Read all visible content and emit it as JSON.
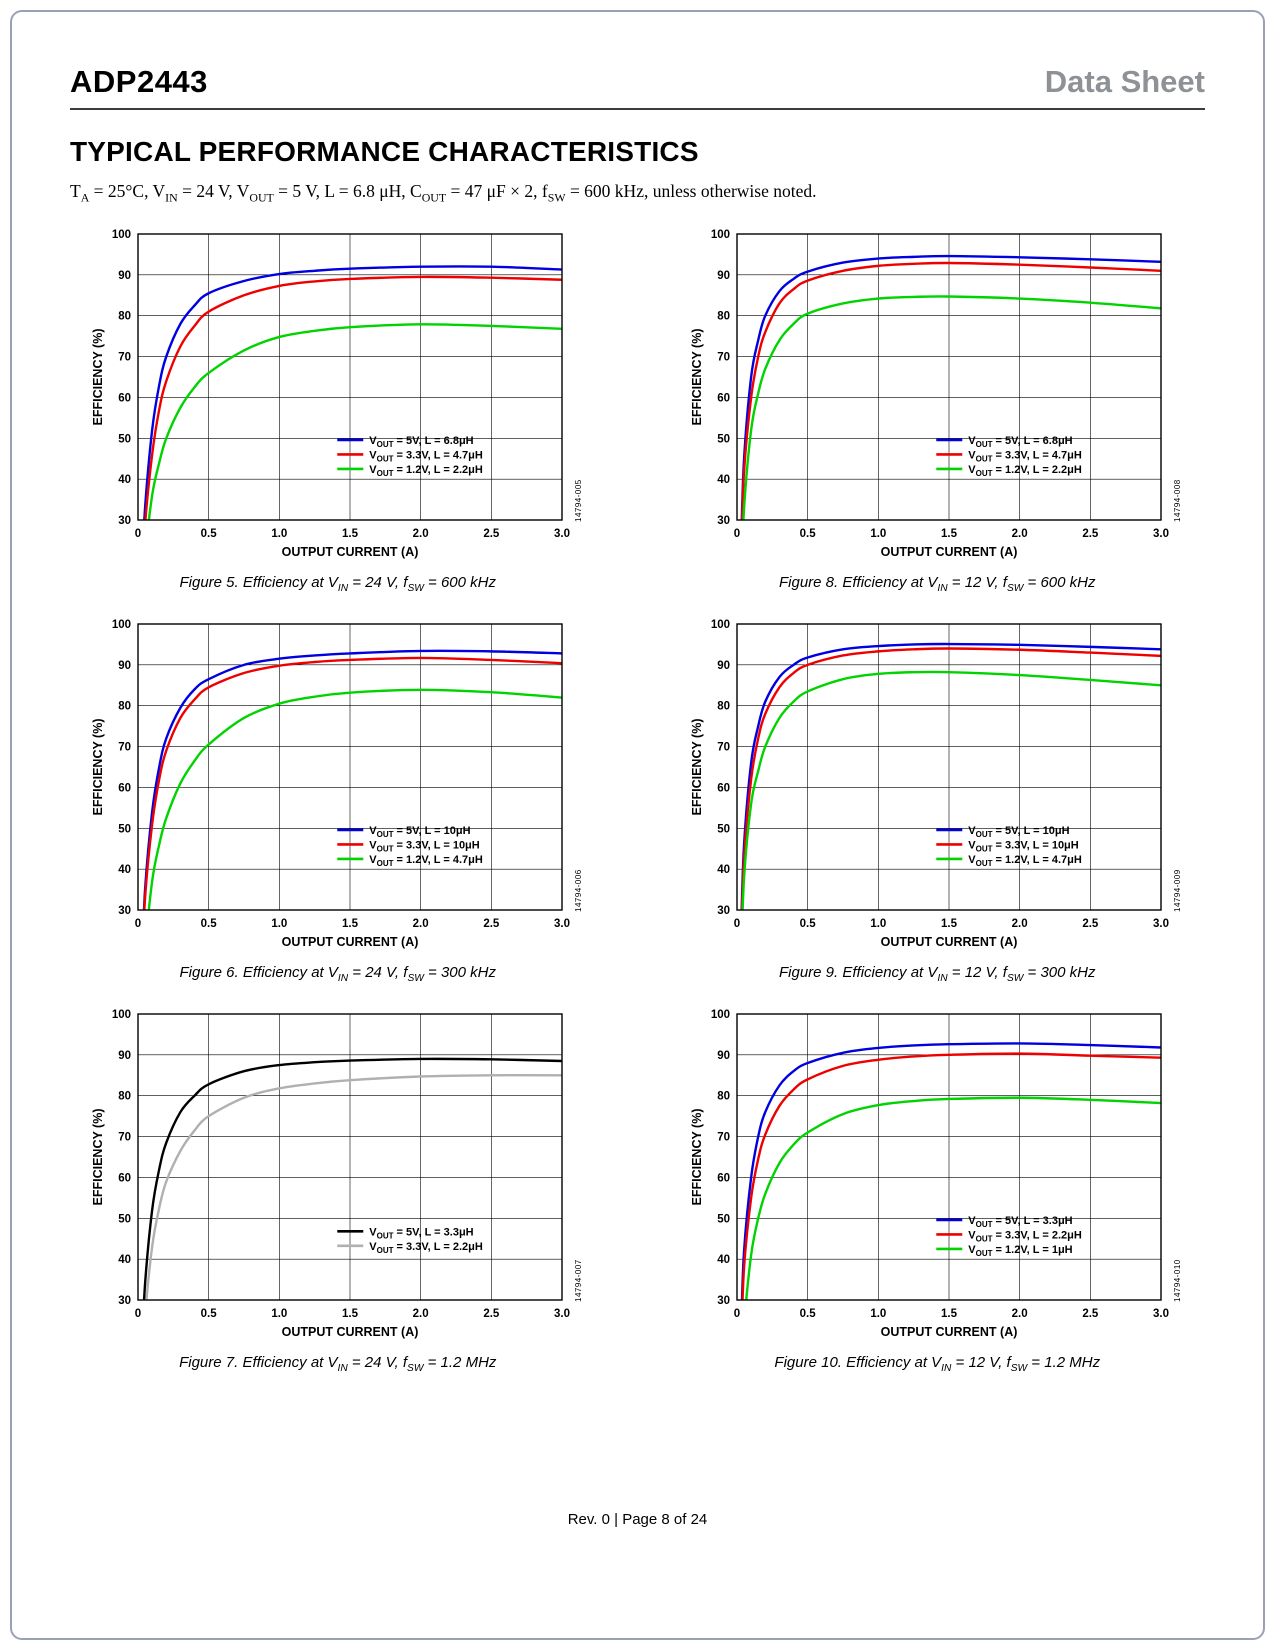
{
  "page": {
    "header": {
      "part_number": "ADP2443",
      "doc_type": "Data Sheet"
    },
    "section_title": "TYPICAL PERFORMANCE CHARACTERISTICS",
    "conditions": "T_{A} = 25°C, V_{IN} = 24 V, V_{OUT} = 5 V, L = 6.8 μH, C_{OUT} = 47 μF × 2, f_{SW} = 600 kHz, unless otherwise noted.",
    "footer": "Rev. 0 | Page 8 of 24"
  },
  "colors": {
    "accent_blue": "#0000e0",
    "accent_red": "#ee0000",
    "accent_green": "#00d300",
    "curve_black": "#000000",
    "curve_gray": "#b0b0b0",
    "doc_type_gray": "#8e9296"
  },
  "chart_data": [
    {
      "type": "line",
      "figure_code": "14794-005",
      "caption": "Figure 5. Efficiency at V_{IN} = 24 V, f_{SW} = 600 kHz",
      "xlabel": "OUTPUT CURRENT (A)",
      "ylabel": "EFFICIENCY (%)",
      "xlim": [
        0,
        3.0
      ],
      "ylim": [
        30,
        100
      ],
      "xticks": [
        "0",
        "0.5",
        "1.0",
        "1.5",
        "2.0",
        "2.5",
        "3.0"
      ],
      "yticks": [
        30,
        40,
        50,
        60,
        70,
        80,
        90,
        100
      ],
      "legend_y": 0.72,
      "x": [
        0.03,
        0.05,
        0.1,
        0.15,
        0.2,
        0.3,
        0.4,
        0.5,
        0.75,
        1.0,
        1.25,
        1.5,
        2.0,
        2.5,
        3.0
      ],
      "series": [
        {
          "name": "V_{OUT} = 5V, L = 6.8μH",
          "color": "#0000e0",
          "values": [
            18,
            33,
            52,
            63,
            70,
            78,
            82.5,
            85.5,
            88.5,
            90.2,
            91,
            91.5,
            92,
            92,
            91.3
          ]
        },
        {
          "name": "V_{OUT} = 3.3V, L = 4.7μH",
          "color": "#ee0000",
          "values": [
            15,
            29,
            46,
            57,
            64,
            72.5,
            77.5,
            81,
            85,
            87.3,
            88.4,
            89,
            89.5,
            89.3,
            88.8
          ]
        },
        {
          "name": "V_{OUT} = 1.2V, L = 2.2μH",
          "color": "#00d300",
          "values": [
            10,
            21,
            36,
            44,
            50,
            57.5,
            62.5,
            66,
            71.5,
            74.8,
            76.3,
            77.2,
            77.9,
            77.5,
            76.8
          ]
        }
      ]
    },
    {
      "type": "line",
      "figure_code": "14794-008",
      "caption": "Figure 8. Efficiency at V_{IN} = 12 V, f_{SW} = 600 kHz",
      "xlabel": "OUTPUT CURRENT (A)",
      "ylabel": "EFFICIENCY (%)",
      "xlim": [
        0,
        3.0
      ],
      "ylim": [
        30,
        100
      ],
      "xticks": [
        "0",
        "0.5",
        "1.0",
        "1.5",
        "2.0",
        "2.5",
        "3.0"
      ],
      "yticks": [
        30,
        40,
        50,
        60,
        70,
        80,
        90,
        100
      ],
      "legend_y": 0.72,
      "x": [
        0.03,
        0.05,
        0.1,
        0.15,
        0.2,
        0.3,
        0.4,
        0.5,
        0.75,
        1.0,
        1.25,
        1.5,
        2.0,
        2.5,
        3.0
      ],
      "series": [
        {
          "name": "V_{OUT} = 5V, L = 6.8μH",
          "color": "#0000e0",
          "values": [
            25,
            45,
            65,
            74,
            80,
            86,
            89,
            90.8,
            93,
            94,
            94.4,
            94.6,
            94.3,
            93.8,
            93.2
          ]
        },
        {
          "name": "V_{OUT} = 3.3V, L = 4.7μH",
          "color": "#ee0000",
          "values": [
            22,
            42,
            60,
            70,
            76,
            83,
            86.5,
            88.6,
            91,
            92.2,
            92.7,
            92.9,
            92.5,
            91.8,
            91
          ]
        },
        {
          "name": "V_{OUT} = 1.2V, L = 2.2μH",
          "color": "#00d300",
          "values": [
            15,
            33,
            52,
            61,
            67,
            74,
            78,
            80.5,
            83,
            84.2,
            84.6,
            84.7,
            84.2,
            83.2,
            81.8
          ]
        }
      ]
    },
    {
      "type": "line",
      "figure_code": "14794-006",
      "caption": "Figure 6. Efficiency at V_{IN} = 24 V, f_{SW} = 300 kHz",
      "xlabel": "OUTPUT CURRENT (A)",
      "ylabel": "EFFICIENCY (%)",
      "xlim": [
        0,
        3.0
      ],
      "ylim": [
        30,
        100
      ],
      "xticks": [
        "0",
        "0.5",
        "1.0",
        "1.5",
        "2.0",
        "2.5",
        "3.0"
      ],
      "yticks": [
        30,
        40,
        50,
        60,
        70,
        80,
        90,
        100
      ],
      "legend_y": 0.72,
      "x": [
        0.03,
        0.05,
        0.1,
        0.15,
        0.2,
        0.3,
        0.4,
        0.5,
        0.75,
        1.0,
        1.25,
        1.5,
        2.0,
        2.5,
        3.0
      ],
      "series": [
        {
          "name": "V_{OUT} = 5V, L = 10μH",
          "color": "#0000e0",
          "values": [
            18,
            35,
            54,
            65,
            72,
            79.5,
            84,
            86.5,
            90,
            91.5,
            92.3,
            92.8,
            93.4,
            93.3,
            92.8
          ]
        },
        {
          "name": "V_{OUT} = 3.3V, L = 10μH",
          "color": "#ee0000",
          "values": [
            16,
            33,
            51,
            62,
            69,
            77,
            81.5,
            84.5,
            88,
            89.8,
            90.7,
            91.2,
            91.7,
            91.2,
            90.4
          ]
        },
        {
          "name": "V_{OUT} = 1.2V, L = 4.7μH",
          "color": "#00d300",
          "values": [
            8,
            20,
            37,
            46,
            52.5,
            61,
            66.5,
            70.5,
            77,
            80.5,
            82.2,
            83.2,
            83.9,
            83.3,
            82
          ]
        }
      ]
    },
    {
      "type": "line",
      "figure_code": "14794-009",
      "caption": "Figure 9. Efficiency at V_{IN} = 12 V, f_{SW} = 300 kHz",
      "xlabel": "OUTPUT CURRENT (A)",
      "ylabel": "EFFICIENCY (%)",
      "xlim": [
        0,
        3.0
      ],
      "ylim": [
        30,
        100
      ],
      "xticks": [
        "0",
        "0.5",
        "1.0",
        "1.5",
        "2.0",
        "2.5",
        "3.0"
      ],
      "yticks": [
        30,
        40,
        50,
        60,
        70,
        80,
        90,
        100
      ],
      "legend_y": 0.72,
      "x": [
        0.03,
        0.05,
        0.1,
        0.15,
        0.2,
        0.3,
        0.4,
        0.5,
        0.75,
        1.0,
        1.25,
        1.5,
        2.0,
        2.5,
        3.0
      ],
      "series": [
        {
          "name": "V_{OUT} = 5V, L = 10μH",
          "color": "#0000e0",
          "values": [
            26,
            46,
            66,
            75,
            81,
            87,
            90,
            91.8,
            93.8,
            94.6,
            95,
            95.1,
            94.9,
            94.4,
            93.8
          ]
        },
        {
          "name": "V_{OUT} = 3.3V, L = 10μH",
          "color": "#ee0000",
          "values": [
            23,
            43,
            62,
            72,
            78,
            84.5,
            88,
            90,
            92.3,
            93.3,
            93.8,
            94,
            93.7,
            93,
            92.2
          ]
        },
        {
          "name": "V_{OUT} = 1.2V, L = 4.7μH",
          "color": "#00d300",
          "values": [
            18,
            38,
            56,
            64,
            70,
            77,
            81,
            83.5,
            86.5,
            87.8,
            88.2,
            88.2,
            87.5,
            86.3,
            85
          ]
        }
      ]
    },
    {
      "type": "line",
      "figure_code": "14794-007",
      "caption": "Figure 7. Efficiency at V_{IN} = 24 V, f_{SW} = 1.2 MHz",
      "xlabel": "OUTPUT CURRENT (A)",
      "ylabel": "EFFICIENCY (%)",
      "xlim": [
        0,
        3.0
      ],
      "ylim": [
        30,
        100
      ],
      "xticks": [
        "0",
        "0.5",
        "1.0",
        "1.5",
        "2.0",
        "2.5",
        "3.0"
      ],
      "yticks": [
        30,
        40,
        50,
        60,
        70,
        80,
        90,
        100
      ],
      "legend_y": 0.76,
      "x": [
        0.03,
        0.05,
        0.1,
        0.15,
        0.2,
        0.3,
        0.4,
        0.5,
        0.75,
        1.0,
        1.25,
        1.5,
        2.0,
        2.5,
        3.0
      ],
      "series": [
        {
          "name": "V_{OUT} = 5V, L = 3.3μH",
          "color": "#000000",
          "values": [
            19,
            34,
            52,
            62,
            68.5,
            76,
            80,
            82.8,
            86,
            87.5,
            88.2,
            88.6,
            89,
            88.9,
            88.5
          ]
        },
        {
          "name": "V_{OUT} = 3.3V, L = 2.2μH",
          "color": "#b0b0b0",
          "values": [
            12,
            26,
            43,
            52.5,
            59,
            66.5,
            71.5,
            75,
            79.5,
            81.8,
            83,
            83.8,
            84.7,
            85,
            85
          ]
        }
      ]
    },
    {
      "type": "line",
      "figure_code": "14794-010",
      "caption": "Figure 10. Efficiency at V_{IN} = 12 V, f_{SW} = 1.2 MHz",
      "xlabel": "OUTPUT CURRENT (A)",
      "ylabel": "EFFICIENCY (%)",
      "xlim": [
        0,
        3.0
      ],
      "ylim": [
        30,
        100
      ],
      "xticks": [
        "0",
        "0.5",
        "1.0",
        "1.5",
        "2.0",
        "2.5",
        "3.0"
      ],
      "yticks": [
        30,
        40,
        50,
        60,
        70,
        80,
        90,
        100
      ],
      "legend_y": 0.72,
      "x": [
        0.03,
        0.05,
        0.1,
        0.15,
        0.2,
        0.3,
        0.4,
        0.5,
        0.75,
        1.0,
        1.25,
        1.5,
        2.0,
        2.5,
        3.0
      ],
      "series": [
        {
          "name": "V_{OUT} = 5V, L = 3.3μH",
          "color": "#0000e0",
          "values": [
            24,
            42,
            60,
            70,
            76,
            82.5,
            86,
            88,
            90.5,
            91.7,
            92.3,
            92.6,
            92.8,
            92.4,
            91.8
          ]
        },
        {
          "name": "V_{OUT} = 3.3V, L = 2.2μH",
          "color": "#ee0000",
          "values": [
            20,
            38,
            55,
            64.5,
            70.5,
            77.5,
            81.5,
            84,
            87.3,
            88.8,
            89.6,
            90,
            90.3,
            89.8,
            89.3
          ]
        },
        {
          "name": "V_{OUT} = 1.2V, L = 1μH",
          "color": "#00d300",
          "values": [
            12,
            24,
            41,
            50,
            56,
            63.5,
            68,
            71,
            75.5,
            77.7,
            78.7,
            79.2,
            79.5,
            79,
            78.2
          ]
        }
      ]
    }
  ]
}
